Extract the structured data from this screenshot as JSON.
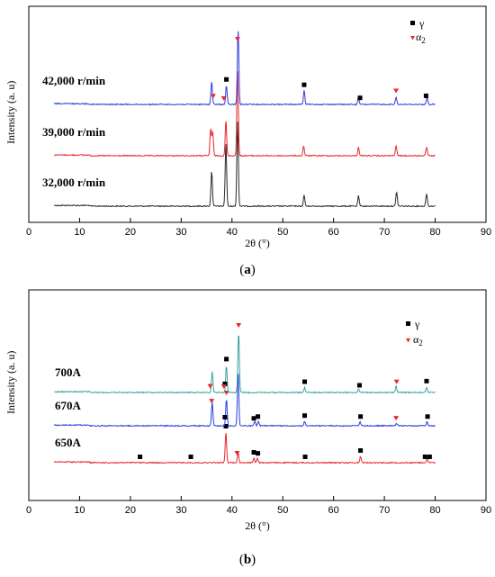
{
  "chart_data": [
    {
      "type": "line",
      "panel_label": "a",
      "xlabel": "2θ (°)",
      "ylabel": "Intensity (a. u)",
      "xlim": [
        0,
        90
      ],
      "xticks": [
        0,
        10,
        20,
        30,
        40,
        50,
        60,
        70,
        80,
        90
      ],
      "legend": {
        "placement": "top-right",
        "entries": [
          {
            "name": "γ",
            "marker": "square",
            "color": "#000000"
          },
          {
            "name": "α2",
            "marker": "triangle-down",
            "color": "#e8262b"
          }
        ]
      },
      "series": [
        {
          "name": "32,000 r/min",
          "color": "#2a2a2a",
          "peaks": [
            [
              36.0,
              0.42
            ],
            [
              38.8,
              0.76
            ],
            [
              41.1,
              1.0
            ],
            [
              54.2,
              0.13
            ],
            [
              64.9,
              0.12
            ],
            [
              72.4,
              0.17
            ],
            [
              78.3,
              0.15
            ]
          ]
        },
        {
          "name": "39,000 r/min",
          "color": "#e8262b",
          "peaks": [
            [
              35.8,
              0.32
            ],
            [
              36.2,
              0.28
            ],
            [
              38.8,
              0.42
            ],
            [
              41.1,
              1.0
            ],
            [
              54.1,
              0.12
            ],
            [
              64.9,
              0.1
            ],
            [
              72.3,
              0.12
            ],
            [
              78.3,
              0.1
            ]
          ]
        },
        {
          "name": "42,000 r/min",
          "color": "#2b3de0",
          "peaks": [
            [
              36.0,
              0.3
            ],
            [
              38.9,
              0.25
            ],
            [
              41.2,
              1.0
            ],
            [
              54.2,
              0.18
            ],
            [
              64.9,
              0.09
            ],
            [
              72.3,
              0.1
            ],
            [
              78.4,
              0.1
            ]
          ],
          "markers": [
            {
              "x": 36.3,
              "kind": "alpha2"
            },
            {
              "x": 38.4,
              "kind": "alpha2"
            },
            {
              "x": 38.9,
              "kind": "gamma"
            },
            {
              "x": 41.1,
              "kind": "alpha2"
            },
            {
              "x": 54.2,
              "kind": "gamma"
            },
            {
              "x": 65.2,
              "kind": "gamma"
            },
            {
              "x": 72.3,
              "kind": "alpha2"
            },
            {
              "x": 78.2,
              "kind": "gamma"
            }
          ]
        }
      ]
    },
    {
      "type": "line",
      "panel_label": "b",
      "xlabel": "2θ (°)",
      "ylabel": "Intensity (a. u)",
      "xlim": [
        0,
        90
      ],
      "xticks": [
        0,
        10,
        20,
        30,
        40,
        50,
        60,
        70,
        80,
        90
      ],
      "legend": {
        "placement": "top-right",
        "entries": [
          {
            "name": "γ",
            "marker": "square",
            "color": "#000000"
          },
          {
            "name": "α2",
            "marker": "triangle-down",
            "color": "#e8262b"
          }
        ]
      },
      "series": [
        {
          "name": "650A",
          "color": "#e8262b",
          "peaks": [
            [
              38.8,
              0.68
            ],
            [
              41.2,
              0.22
            ],
            [
              44.3,
              0.1
            ],
            [
              45.0,
              0.1
            ],
            [
              65.3,
              0.14
            ],
            [
              78.4,
              0.08
            ]
          ],
          "markers": [
            {
              "x": 21.9,
              "kind": "gamma"
            },
            {
              "x": 31.9,
              "kind": "gamma"
            },
            {
              "x": 38.8,
              "kind": "gamma"
            },
            {
              "x": 41.0,
              "kind": "alpha2"
            },
            {
              "x": 44.3,
              "kind": "gamma"
            },
            {
              "x": 45.1,
              "kind": "gamma"
            },
            {
              "x": 54.4,
              "kind": "gamma"
            },
            {
              "x": 65.3,
              "kind": "gamma"
            },
            {
              "x": 78.0,
              "kind": "gamma"
            },
            {
              "x": 78.9,
              "kind": "gamma"
            }
          ]
        },
        {
          "name": "670A",
          "color": "#2b3de0",
          "peaks": [
            [
              36.1,
              0.45
            ],
            [
              38.9,
              0.5
            ],
            [
              41.2,
              1.0
            ],
            [
              44.5,
              0.08
            ],
            [
              45.2,
              0.08
            ],
            [
              54.3,
              0.08
            ],
            [
              65.2,
              0.08
            ],
            [
              72.4,
              0.04
            ],
            [
              78.4,
              0.08
            ]
          ],
          "markers": [
            {
              "x": 36.0,
              "kind": "alpha2"
            },
            {
              "x": 38.6,
              "kind": "gamma"
            },
            {
              "x": 38.9,
              "kind": "alpha2"
            },
            {
              "x": 44.3,
              "kind": "gamma"
            },
            {
              "x": 45.1,
              "kind": "gamma"
            },
            {
              "x": 54.3,
              "kind": "gamma"
            },
            {
              "x": 65.3,
              "kind": "gamma"
            },
            {
              "x": 72.3,
              "kind": "alpha2"
            },
            {
              "x": 78.5,
              "kind": "gamma"
            }
          ]
        },
        {
          "name": "700A",
          "color": "#3aa39a",
          "peaks": [
            [
              36.1,
              0.35
            ],
            [
              38.9,
              0.45
            ],
            [
              41.3,
              1.0
            ],
            [
              54.3,
              0.08
            ],
            [
              64.9,
              0.06
            ],
            [
              72.3,
              0.1
            ],
            [
              78.3,
              0.09
            ]
          ],
          "markers": [
            {
              "x": 35.7,
              "kind": "alpha2"
            },
            {
              "x": 38.6,
              "kind": "gamma"
            },
            {
              "x": 38.4,
              "kind": "alpha2"
            },
            {
              "x": 38.9,
              "kind": "gamma"
            },
            {
              "x": 41.3,
              "kind": "alpha2"
            },
            {
              "x": 54.3,
              "kind": "gamma"
            },
            {
              "x": 65.1,
              "kind": "gamma"
            },
            {
              "x": 72.4,
              "kind": "alpha2"
            },
            {
              "x": 78.3,
              "kind": "gamma"
            }
          ]
        }
      ]
    }
  ],
  "captions": {
    "a": "a",
    "b": "b"
  },
  "legend_labels": {
    "gamma": "γ",
    "alpha": "α",
    "alpha_sub": "2"
  }
}
